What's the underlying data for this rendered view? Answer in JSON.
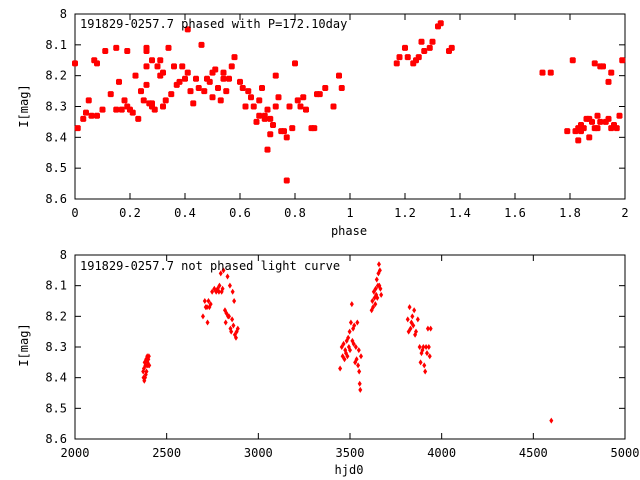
{
  "chart_data": [
    {
      "type": "scatter",
      "title": "191829-0257.7 phased with P=172.10day",
      "xlabel": "phase",
      "ylabel": "I[mag]",
      "xlim": [
        0,
        2
      ],
      "ylim": [
        8,
        8.6
      ],
      "y_inverted": true,
      "xticks": [
        "0",
        "0.2",
        "0.4",
        "0.6",
        "0.8",
        "1",
        "1.2",
        "1.4",
        "1.6",
        "1.8",
        "2"
      ],
      "yticks": [
        "8",
        "8.1",
        "8.2",
        "8.3",
        "8.4",
        "8.5",
        "8.6"
      ],
      "marker": "filled-square",
      "color": "#ff0000",
      "points": [
        [
          0.0,
          8.16
        ],
        [
          0.01,
          8.37
        ],
        [
          0.03,
          8.34
        ],
        [
          0.04,
          8.32
        ],
        [
          0.05,
          8.28
        ],
        [
          0.06,
          8.33
        ],
        [
          0.07,
          8.15
        ],
        [
          0.08,
          8.16
        ],
        [
          0.08,
          8.33
        ],
        [
          0.1,
          8.31
        ],
        [
          0.11,
          8.12
        ],
        [
          0.13,
          8.26
        ],
        [
          0.15,
          8.11
        ],
        [
          0.15,
          8.31
        ],
        [
          0.16,
          8.22
        ],
        [
          0.17,
          8.31
        ],
        [
          0.18,
          8.28
        ],
        [
          0.19,
          8.12
        ],
        [
          0.19,
          8.3
        ],
        [
          0.2,
          8.31
        ],
        [
          0.21,
          8.32
        ],
        [
          0.22,
          8.2
        ],
        [
          0.23,
          8.34
        ],
        [
          0.24,
          8.25
        ],
        [
          0.25,
          8.28
        ],
        [
          0.26,
          8.23
        ],
        [
          0.26,
          8.17
        ],
        [
          0.26,
          8.12
        ],
        [
          0.26,
          8.11
        ],
        [
          0.27,
          8.29
        ],
        [
          0.28,
          8.3
        ],
        [
          0.28,
          8.15
        ],
        [
          0.28,
          8.29
        ],
        [
          0.29,
          8.31
        ],
        [
          0.3,
          8.17
        ],
        [
          0.31,
          8.2
        ],
        [
          0.31,
          8.15
        ],
        [
          0.32,
          8.3
        ],
        [
          0.32,
          8.19
        ],
        [
          0.33,
          8.28
        ],
        [
          0.34,
          8.11
        ],
        [
          0.35,
          8.26
        ],
        [
          0.36,
          8.17
        ],
        [
          0.37,
          8.23
        ],
        [
          0.38,
          8.22
        ],
        [
          0.39,
          8.17
        ],
        [
          0.4,
          8.21
        ],
        [
          0.41,
          8.05
        ],
        [
          0.41,
          8.19
        ],
        [
          0.42,
          8.25
        ],
        [
          0.43,
          8.29
        ],
        [
          0.44,
          8.21
        ],
        [
          0.45,
          8.24
        ],
        [
          0.46,
          8.1
        ],
        [
          0.47,
          8.25
        ],
        [
          0.48,
          8.21
        ],
        [
          0.49,
          8.22
        ],
        [
          0.5,
          8.27
        ],
        [
          0.5,
          8.19
        ],
        [
          0.51,
          8.18
        ],
        [
          0.52,
          8.24
        ],
        [
          0.53,
          8.28
        ],
        [
          0.54,
          8.21
        ],
        [
          0.54,
          8.19
        ],
        [
          0.55,
          8.25
        ],
        [
          0.56,
          8.21
        ],
        [
          0.57,
          8.17
        ],
        [
          0.58,
          8.14
        ],
        [
          0.6,
          8.22
        ],
        [
          0.61,
          8.24
        ],
        [
          0.62,
          8.3
        ],
        [
          0.63,
          8.25
        ],
        [
          0.64,
          8.27
        ],
        [
          0.65,
          8.3
        ],
        [
          0.66,
          8.35
        ],
        [
          0.67,
          8.33
        ],
        [
          0.67,
          8.28
        ],
        [
          0.68,
          8.24
        ],
        [
          0.69,
          8.34
        ],
        [
          0.69,
          8.33
        ],
        [
          0.7,
          8.31
        ],
        [
          0.7,
          8.44
        ],
        [
          0.71,
          8.39
        ],
        [
          0.71,
          8.34
        ],
        [
          0.72,
          8.36
        ],
        [
          0.73,
          8.2
        ],
        [
          0.73,
          8.3
        ],
        [
          0.74,
          8.27
        ],
        [
          0.75,
          8.38
        ],
        [
          0.76,
          8.38
        ],
        [
          0.77,
          8.4
        ],
        [
          0.77,
          8.54
        ],
        [
          0.78,
          8.3
        ],
        [
          0.79,
          8.37
        ],
        [
          0.8,
          8.16
        ],
        [
          0.81,
          8.28
        ],
        [
          0.82,
          8.3
        ],
        [
          0.83,
          8.27
        ],
        [
          0.84,
          8.31
        ],
        [
          0.86,
          8.37
        ],
        [
          0.87,
          8.37
        ],
        [
          0.88,
          8.26
        ],
        [
          0.89,
          8.26
        ],
        [
          0.91,
          8.24
        ],
        [
          0.94,
          8.3
        ],
        [
          0.96,
          8.2
        ],
        [
          0.97,
          8.24
        ],
        [
          1.17,
          8.16
        ],
        [
          1.18,
          8.14
        ],
        [
          1.2,
          8.11
        ],
        [
          1.21,
          8.14
        ],
        [
          1.23,
          8.16
        ],
        [
          1.24,
          8.15
        ],
        [
          1.25,
          8.14
        ],
        [
          1.26,
          8.09
        ],
        [
          1.27,
          8.12
        ],
        [
          1.29,
          8.11
        ],
        [
          1.3,
          8.09
        ],
        [
          1.32,
          8.04
        ],
        [
          1.33,
          8.03
        ],
        [
          1.36,
          8.12
        ],
        [
          1.37,
          8.11
        ],
        [
          1.7,
          8.19
        ],
        [
          1.73,
          8.19
        ],
        [
          1.79,
          8.38
        ],
        [
          1.81,
          8.15
        ],
        [
          1.82,
          8.38
        ],
        [
          1.83,
          8.41
        ],
        [
          1.83,
          8.37
        ],
        [
          1.84,
          8.36
        ],
        [
          1.84,
          8.38
        ],
        [
          1.85,
          8.37
        ],
        [
          1.86,
          8.34
        ],
        [
          1.87,
          8.4
        ],
        [
          1.87,
          8.34
        ],
        [
          1.88,
          8.35
        ],
        [
          1.89,
          8.37
        ],
        [
          1.89,
          8.16
        ],
        [
          1.9,
          8.37
        ],
        [
          1.9,
          8.33
        ],
        [
          1.91,
          8.17
        ],
        [
          1.91,
          8.35
        ],
        [
          1.92,
          8.17
        ],
        [
          1.93,
          8.35
        ],
        [
          1.94,
          8.22
        ],
        [
          1.94,
          8.34
        ],
        [
          1.95,
          8.37
        ],
        [
          1.95,
          8.19
        ],
        [
          1.96,
          8.36
        ],
        [
          1.97,
          8.37
        ],
        [
          1.98,
          8.33
        ],
        [
          1.99,
          8.15
        ]
      ]
    },
    {
      "type": "scatter",
      "title": "191829-0257.7 not phased light curve",
      "xlabel": "hjd0",
      "ylabel": "I[mag]",
      "xlim": [
        2000,
        5000
      ],
      "ylim": [
        8,
        8.6
      ],
      "y_inverted": true,
      "xticks": [
        "2000",
        "2500",
        "3000",
        "3500",
        "4000",
        "4500",
        "5000"
      ],
      "yticks": [
        "8",
        "8.1",
        "8.2",
        "8.3",
        "8.4",
        "8.5",
        "8.6"
      ],
      "marker": "small-diamond",
      "color": "#ff0000",
      "points": [
        [
          2372,
          8.38
        ],
        [
          2374,
          8.4
        ],
        [
          2376,
          8.37
        ],
        [
          2378,
          8.41
        ],
        [
          2380,
          8.35
        ],
        [
          2382,
          8.4
        ],
        [
          2384,
          8.36
        ],
        [
          2386,
          8.39
        ],
        [
          2388,
          8.34
        ],
        [
          2390,
          8.38
        ],
        [
          2392,
          8.36
        ],
        [
          2394,
          8.33
        ],
        [
          2396,
          8.35
        ],
        [
          2398,
          8.36
        ],
        [
          2400,
          8.34
        ],
        [
          2403,
          8.33
        ],
        [
          2405,
          8.36
        ],
        [
          2698,
          8.2
        ],
        [
          2708,
          8.15
        ],
        [
          2713,
          8.17
        ],
        [
          2720,
          8.17
        ],
        [
          2723,
          8.22
        ],
        [
          2728,
          8.15
        ],
        [
          2733,
          8.17
        ],
        [
          2740,
          8.16
        ],
        [
          2748,
          8.12
        ],
        [
          2760,
          8.11
        ],
        [
          2770,
          8.12
        ],
        [
          2778,
          8.11
        ],
        [
          2785,
          8.12
        ],
        [
          2788,
          8.1
        ],
        [
          2795,
          8.06
        ],
        [
          2800,
          8.12
        ],
        [
          2805,
          8.11
        ],
        [
          2810,
          8.05
        ],
        [
          2818,
          8.18
        ],
        [
          2822,
          8.22
        ],
        [
          2826,
          8.19
        ],
        [
          2832,
          8.07
        ],
        [
          2835,
          8.2
        ],
        [
          2840,
          8.2
        ],
        [
          2845,
          8.1
        ],
        [
          2848,
          8.24
        ],
        [
          2852,
          8.25
        ],
        [
          2857,
          8.21
        ],
        [
          2860,
          8.12
        ],
        [
          2864,
          8.23
        ],
        [
          2868,
          8.15
        ],
        [
          2872,
          8.26
        ],
        [
          2878,
          8.27
        ],
        [
          2882,
          8.25
        ],
        [
          2888,
          8.24
        ],
        [
          3446,
          8.37
        ],
        [
          3455,
          8.3
        ],
        [
          3460,
          8.33
        ],
        [
          3465,
          8.29
        ],
        [
          3470,
          8.34
        ],
        [
          3474,
          8.31
        ],
        [
          3478,
          8.32
        ],
        [
          3482,
          8.28
        ],
        [
          3486,
          8.33
        ],
        [
          3490,
          8.27
        ],
        [
          3494,
          8.3
        ],
        [
          3498,
          8.25
        ],
        [
          3500,
          8.31
        ],
        [
          3505,
          8.22
        ],
        [
          3510,
          8.16
        ],
        [
          3513,
          8.28
        ],
        [
          3517,
          8.24
        ],
        [
          3520,
          8.29
        ],
        [
          3523,
          8.23
        ],
        [
          3528,
          8.35
        ],
        [
          3532,
          8.3
        ],
        [
          3536,
          8.34
        ],
        [
          3540,
          8.22
        ],
        [
          3544,
          8.36
        ],
        [
          3548,
          8.31
        ],
        [
          3550,
          8.38
        ],
        [
          3553,
          8.42
        ],
        [
          3556,
          8.44
        ],
        [
          3560,
          8.33
        ],
        [
          3618,
          8.18
        ],
        [
          3622,
          8.15
        ],
        [
          3626,
          8.17
        ],
        [
          3630,
          8.12
        ],
        [
          3634,
          8.14
        ],
        [
          3638,
          8.16
        ],
        [
          3640,
          8.11
        ],
        [
          3643,
          8.13
        ],
        [
          3646,
          8.08
        ],
        [
          3649,
          8.14
        ],
        [
          3652,
          8.1
        ],
        [
          3655,
          8.06
        ],
        [
          3658,
          8.03
        ],
        [
          3660,
          8.1
        ],
        [
          3663,
          8.05
        ],
        [
          3666,
          8.11
        ],
        [
          3670,
          8.13
        ],
        [
          3815,
          8.21
        ],
        [
          3820,
          8.25
        ],
        [
          3825,
          8.17
        ],
        [
          3830,
          8.24
        ],
        [
          3835,
          8.22
        ],
        [
          3840,
          8.2
        ],
        [
          3845,
          8.23
        ],
        [
          3850,
          8.18
        ],
        [
          3855,
          8.26
        ],
        [
          3860,
          8.25
        ],
        [
          3870,
          8.21
        ],
        [
          3880,
          8.3
        ],
        [
          3885,
          8.35
        ],
        [
          3890,
          8.32
        ],
        [
          3895,
          8.31
        ],
        [
          3900,
          8.3
        ],
        [
          3905,
          8.36
        ],
        [
          3910,
          8.38
        ],
        [
          3915,
          8.3
        ],
        [
          3920,
          8.32
        ],
        [
          3925,
          8.24
        ],
        [
          3930,
          8.3
        ],
        [
          3935,
          8.33
        ],
        [
          3940,
          8.24
        ],
        [
          4598,
          8.54
        ]
      ]
    }
  ]
}
